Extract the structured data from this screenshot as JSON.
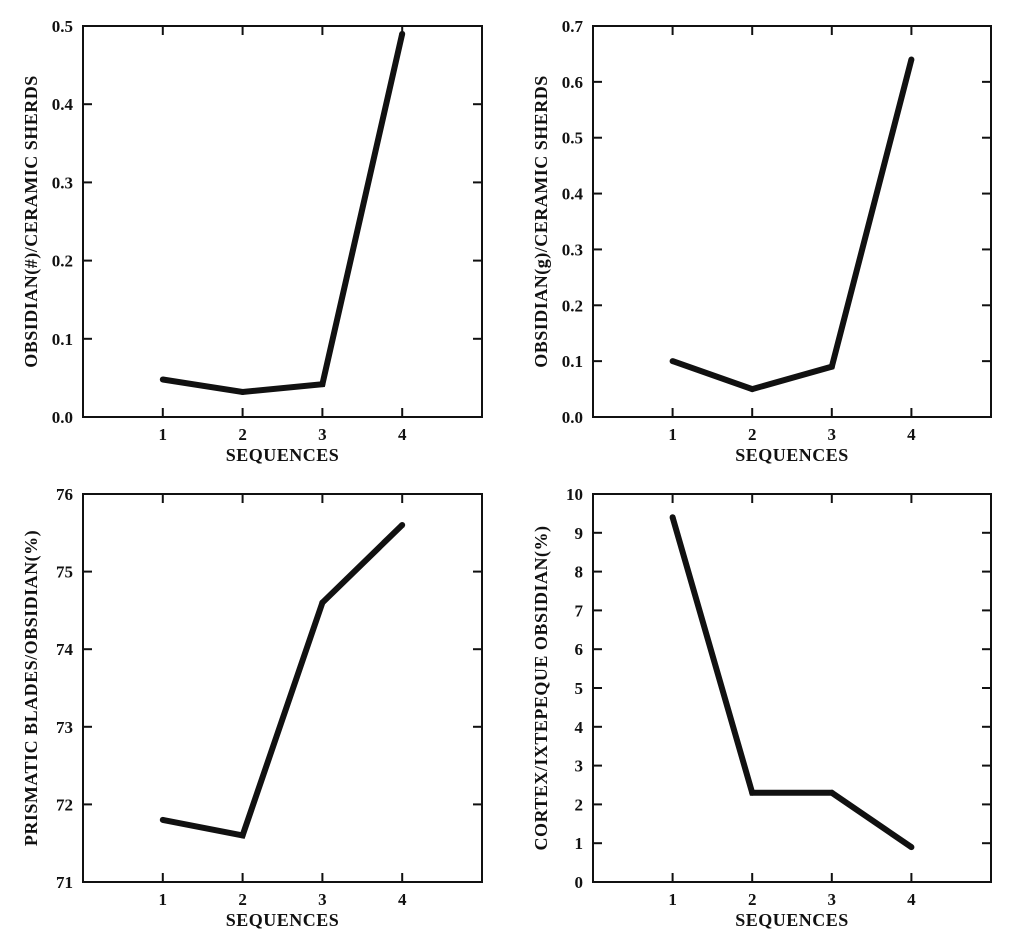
{
  "chart_data": [
    {
      "type": "line",
      "xlabel": "SEQUENCES",
      "ylabel": "OBSIDIAN(#)/CERAMIC SHERDS",
      "x": [
        1,
        2,
        3,
        4
      ],
      "xticks": [
        "1",
        "2",
        "3",
        "4"
      ],
      "xlim": [
        0,
        5
      ],
      "values": [
        0.048,
        0.032,
        0.042,
        0.49
      ],
      "yticks": [
        "0.0",
        "0.1",
        "0.2",
        "0.3",
        "0.4",
        "0.5"
      ],
      "ylim": [
        0,
        0.5
      ],
      "grid": false
    },
    {
      "type": "line",
      "xlabel": "SEQUENCES",
      "ylabel": "OBSIDIAN(g)/CERAMIC SHERDS",
      "x": [
        1,
        2,
        3,
        4
      ],
      "xticks": [
        "1",
        "2",
        "3",
        "4"
      ],
      "xlim": [
        0,
        5
      ],
      "values": [
        0.1,
        0.05,
        0.09,
        0.64
      ],
      "yticks": [
        "0.0",
        "0.1",
        "0.2",
        "0.3",
        "0.4",
        "0.5",
        "0.6",
        "0.7"
      ],
      "ylim": [
        0,
        0.7
      ],
      "grid": false
    },
    {
      "type": "line",
      "xlabel": "SEQUENCES",
      "ylabel": "PRISMATIC BLADES/OBSIDIAN(%)",
      "x": [
        1,
        2,
        3,
        4
      ],
      "xticks": [
        "1",
        "2",
        "3",
        "4"
      ],
      "xlim": [
        0,
        5
      ],
      "values": [
        71.8,
        71.6,
        74.6,
        75.6
      ],
      "yticks": [
        "71",
        "72",
        "73",
        "74",
        "75",
        "76"
      ],
      "ylim": [
        71,
        76
      ],
      "grid": false
    },
    {
      "type": "line",
      "xlabel": "SEQUENCES",
      "ylabel": "CORTEX/IXTEPEQUE OBSIDIAN(%)",
      "x": [
        1,
        2,
        3,
        4
      ],
      "xticks": [
        "1",
        "2",
        "3",
        "4"
      ],
      "xlim": [
        0,
        5
      ],
      "values": [
        9.4,
        2.3,
        2.3,
        0.9
      ],
      "yticks": [
        "0",
        "1",
        "2",
        "3",
        "4",
        "5",
        "6",
        "7",
        "8",
        "9",
        "10"
      ],
      "ylim": [
        0,
        10
      ],
      "grid": false
    }
  ]
}
